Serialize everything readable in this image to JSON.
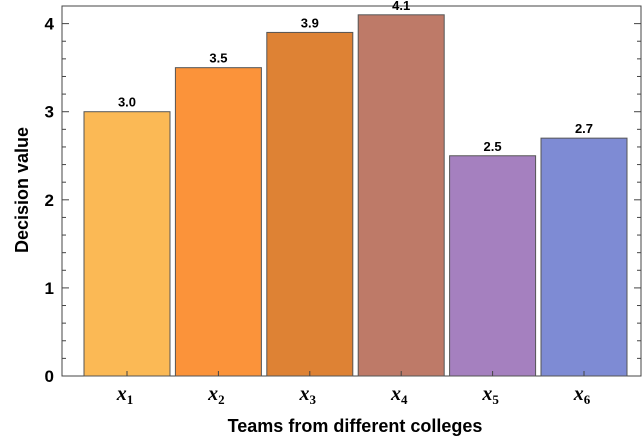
{
  "chart_data": {
    "type": "bar",
    "categories": [
      {
        "base": "x",
        "sub": "1"
      },
      {
        "base": "x",
        "sub": "2"
      },
      {
        "base": "x",
        "sub": "3"
      },
      {
        "base": "x",
        "sub": "4"
      },
      {
        "base": "x",
        "sub": "5"
      },
      {
        "base": "x",
        "sub": "6"
      }
    ],
    "values": [
      3.0,
      3.5,
      3.9,
      4.1,
      2.5,
      2.7
    ],
    "data_labels": [
      "3.0",
      "3.5",
      "3.9",
      "4.1",
      "2.5",
      "2.7"
    ],
    "colors": [
      "#FBB955",
      "#FB933A",
      "#DE8234",
      "#BE7A68",
      "#A580BF",
      "#7E8BD4"
    ],
    "title": "",
    "xlabel": "Teams from different colleges",
    "ylabel": "Decision value",
    "ylim": [
      0,
      4.2
    ],
    "yticks": [
      0,
      1,
      2,
      3,
      4
    ],
    "grid": false,
    "frame": true
  }
}
